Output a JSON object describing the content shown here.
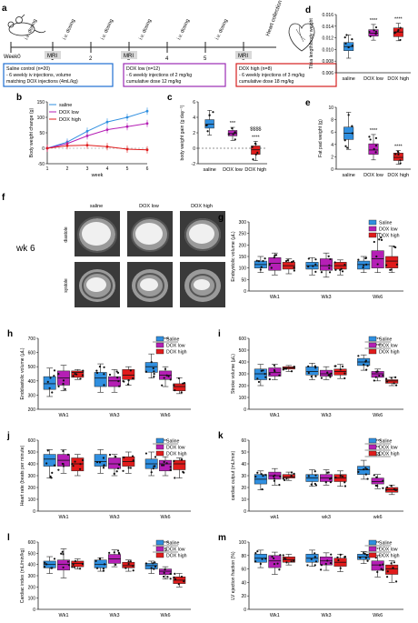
{
  "colors": {
    "saline": "#2f8fe0",
    "dox_low": "#b51fb5",
    "dox_high": "#e01b1b",
    "blue_box": "#1f6fd1",
    "purple_box": "#9b2bb5",
    "red_box": "#d62020"
  },
  "panel_a": {
    "letter": "a",
    "week0": "Week0",
    "weeks": [
      "1",
      "2",
      "3",
      "4",
      "5",
      "6"
    ],
    "dosing": "i.v. dosing",
    "mri": "MRI",
    "heart_collection": "Heart collection",
    "boxes": [
      {
        "key": "saline",
        "lines": [
          "Saline control (n=20)",
          "- 6 weekly iv injections, volume",
          "matching DOX injections (4mL/kg)"
        ]
      },
      {
        "key": "low",
        "lines": [
          "DOX low (n=12)",
          "- 6 weekly injections of 2 mg/kg",
          "cumulative dose 12 mg/kg"
        ]
      },
      {
        "key": "high",
        "lines": [
          "DOX high (n=8)",
          "- 6 weekly injections of 3 mg/kg",
          "cumulative dose 18 mg/kg"
        ]
      }
    ]
  },
  "panel_f": {
    "letter": "f",
    "cols": [
      "saline",
      "DOX low",
      "DOX high"
    ],
    "rows": [
      "diastole",
      "systole"
    ],
    "side_label": "wk 6"
  },
  "chart_data": [
    {
      "id": "b",
      "type": "line",
      "xlabel": "week",
      "ylabel": "Body weight change (g)",
      "x": [
        1,
        2,
        3,
        4,
        5,
        6
      ],
      "ylim": [
        -50,
        150
      ],
      "yticks": [
        -50,
        0,
        50,
        100,
        150
      ],
      "legend": [
        "saline",
        "DOX low",
        "DOX high"
      ],
      "series": [
        {
          "name": "saline",
          "values": [
            0,
            20,
            55,
            85,
            100,
            120
          ]
        },
        {
          "name": "DOX low",
          "values": [
            0,
            15,
            40,
            60,
            70,
            80
          ]
        },
        {
          "name": "DOX high",
          "values": [
            0,
            8,
            10,
            5,
            -3,
            -5
          ]
        }
      ]
    },
    {
      "id": "c",
      "type": "box",
      "ylabel": "body weight gain (g day⁻¹)",
      "categories": [
        "saline",
        "DOX low",
        "DOX high"
      ],
      "ylim": [
        -2,
        6
      ],
      "yticks": [
        -2,
        0,
        2,
        4,
        6
      ],
      "boxes": [
        [
          1.7,
          2.6,
          3.1,
          3.7,
          4.9
        ],
        [
          1.0,
          1.6,
          1.9,
          2.3,
          2.7
        ],
        [
          -1.6,
          -0.8,
          -0.2,
          0.3,
          0.9
        ]
      ],
      "sig": [
        "",
        "***",
        "****"
      ],
      "extra_sig": "$$$$"
    },
    {
      "id": "d",
      "type": "box",
      "ylabel": "Tibia length/body weight",
      "categories": [
        "saline",
        "DOX low",
        "DOX high"
      ],
      "ylim": [
        0.006,
        0.016
      ],
      "yticks": [
        0.006,
        0.008,
        0.01,
        0.012,
        0.014,
        0.016
      ],
      "ytick_labels": [
        "0.006",
        "0.008",
        "0.010",
        "0.012",
        "0.014",
        "0.016"
      ],
      "boxes": [
        [
          0.0085,
          0.0098,
          0.0105,
          0.0112,
          0.0125
        ],
        [
          0.0116,
          0.0123,
          0.0128,
          0.0134,
          0.0143
        ],
        [
          0.0115,
          0.0122,
          0.013,
          0.0137,
          0.0145
        ]
      ],
      "sig": [
        "",
        "****",
        "****"
      ]
    },
    {
      "id": "e",
      "type": "box",
      "ylabel": "Fat pad weight (g)",
      "categories": [
        "saline",
        "DOX low",
        "DOX high"
      ],
      "ylim": [
        0,
        10
      ],
      "yticks": [
        0,
        2,
        4,
        6,
        8,
        10
      ],
      "boxes": [
        [
          3.2,
          4.8,
          5.8,
          6.8,
          9.2
        ],
        [
          1.5,
          2.4,
          3.1,
          4.1,
          5.6
        ],
        [
          0.8,
          1.4,
          1.9,
          2.6,
          3.0
        ]
      ],
      "sig": [
        "",
        "****",
        "****"
      ]
    },
    {
      "id": "g",
      "type": "box",
      "ylabel": "Endsystolic volume (μL)",
      "categories": [
        "Wk1",
        "Wk3",
        "Wk6"
      ],
      "ylim": [
        0,
        300
      ],
      "yticks": [
        0,
        50,
        100,
        150,
        200,
        250,
        300
      ],
      "legend": [
        "Saline",
        "DOX low",
        "DOX high"
      ],
      "boxes": [
        [
          [
            80,
            100,
            115,
            130,
            150
          ],
          [
            70,
            90,
            120,
            145,
            165
          ],
          [
            75,
            95,
            110,
            125,
            140
          ]
        ],
        [
          [
            70,
            95,
            110,
            125,
            145
          ],
          [
            60,
            90,
            110,
            140,
            165
          ],
          [
            70,
            95,
            110,
            125,
            135
          ]
        ],
        [
          [
            80,
            95,
            115,
            130,
            150
          ],
          [
            80,
            100,
            140,
            175,
            250
          ],
          [
            80,
            100,
            130,
            150,
            195
          ]
        ]
      ],
      "sig": []
    },
    {
      "id": "h",
      "type": "box",
      "ylabel": "Enddiastolic volume (μL)",
      "categories": [
        "Wk1",
        "Wk3",
        "Wk6"
      ],
      "ylim": [
        200,
        700
      ],
      "yticks": [
        200,
        300,
        400,
        500,
        600,
        700
      ],
      "legend": [
        "Saline",
        "DOX low",
        "DOX high"
      ],
      "boxes": [
        [
          [
            290,
            340,
            380,
            430,
            490
          ],
          [
            330,
            370,
            420,
            470,
            510
          ],
          [
            410,
            425,
            460,
            470,
            480
          ]
        ],
        [
          [
            320,
            360,
            420,
            460,
            520
          ],
          [
            320,
            360,
            400,
            430,
            480
          ],
          [
            370,
            410,
            440,
            480,
            500
          ]
        ],
        [
          [
            420,
            460,
            500,
            530,
            590
          ],
          [
            360,
            410,
            440,
            470,
            500
          ],
          [
            310,
            330,
            360,
            380,
            420
          ]
        ]
      ],
      "sig": [
        "****"
      ]
    },
    {
      "id": "i",
      "type": "box",
      "ylabel": "Stroke volume (μL)",
      "categories": [
        "Wk1",
        "Wk3",
        "Wk6"
      ],
      "ylim": [
        0,
        600
      ],
      "yticks": [
        0,
        100,
        200,
        300,
        400,
        500,
        600
      ],
      "legend": [
        "Saline",
        "DOX low",
        "DOX high"
      ],
      "boxes": [
        [
          [
            200,
            250,
            300,
            340,
            380
          ],
          [
            250,
            280,
            310,
            350,
            380
          ],
          [
            320,
            340,
            350,
            360,
            370
          ]
        ],
        [
          [
            250,
            290,
            320,
            360,
            390
          ],
          [
            250,
            280,
            300,
            330,
            360
          ],
          [
            260,
            290,
            320,
            340,
            380
          ]
        ],
        [
          [
            330,
            370,
            400,
            430,
            460
          ],
          [
            240,
            270,
            300,
            320,
            340
          ],
          [
            200,
            220,
            240,
            250,
            270
          ]
        ]
      ],
      "sig": [
        "***",
        "****"
      ]
    },
    {
      "id": "j",
      "type": "box",
      "ylabel": "Heart rate (beats per minute)",
      "categories": [
        "Wk1",
        "Wk3",
        "Wk6"
      ],
      "ylim": [
        0,
        600
      ],
      "yticks": [
        0,
        100,
        200,
        300,
        400,
        500,
        600
      ],
      "legend": [
        "Saline",
        "DOX low",
        "DOX high"
      ],
      "boxes": [
        [
          [
            280,
            380,
            440,
            480,
            520
          ],
          [
            320,
            380,
            430,
            480,
            520
          ],
          [
            300,
            340,
            400,
            450,
            480
          ]
        ],
        [
          [
            320,
            380,
            420,
            480,
            520
          ],
          [
            300,
            360,
            400,
            450,
            480
          ],
          [
            320,
            380,
            420,
            460,
            500
          ]
        ],
        [
          [
            300,
            360,
            400,
            440,
            500
          ],
          [
            300,
            340,
            400,
            430,
            460
          ],
          [
            280,
            350,
            400,
            430,
            450
          ]
        ]
      ],
      "sig": [
        "**"
      ]
    },
    {
      "id": "k",
      "type": "box",
      "ylabel": "cardiac output (mL/min)",
      "categories": [
        "wk1",
        "wk3",
        "wk6"
      ],
      "ylim": [
        0,
        60
      ],
      "yticks": [
        0,
        10,
        20,
        30,
        40,
        50,
        60
      ],
      "legend": [
        "Saline",
        "DOX low",
        "DOX high"
      ],
      "boxes": [
        [
          [
            18,
            23,
            27,
            31,
            34
          ],
          [
            22,
            27,
            30,
            33,
            36
          ],
          [
            26,
            28,
            29,
            31,
            33
          ]
        ],
        [
          [
            21,
            25,
            28,
            31,
            35
          ],
          [
            22,
            25,
            28,
            31,
            35
          ],
          [
            21,
            25,
            28,
            31,
            34
          ]
        ],
        [
          [
            27,
            31,
            35,
            38,
            43
          ],
          [
            19,
            23,
            25,
            28,
            31
          ],
          [
            14,
            16,
            18,
            20,
            22
          ]
        ]
      ],
      "sig": [
        "****",
        "**",
        "$$"
      ]
    },
    {
      "id": "l",
      "type": "box",
      "ylabel": "Cardiac index (mL/min/kg)",
      "categories": [
        "Wk1",
        "Wk3",
        "Wk6"
      ],
      "ylim": [
        0,
        600
      ],
      "yticks": [
        0,
        100,
        200,
        300,
        400,
        500,
        600
      ],
      "legend": [
        "Saline",
        "DOX low",
        "DOX high"
      ],
      "boxes": [
        [
          [
            320,
            370,
            400,
            430,
            470
          ],
          [
            280,
            350,
            400,
            440,
            540
          ],
          [
            360,
            380,
            410,
            430,
            450
          ]
        ],
        [
          [
            340,
            370,
            400,
            440,
            460
          ],
          [
            380,
            410,
            450,
            490,
            530
          ],
          [
            340,
            370,
            390,
            420,
            440
          ]
        ],
        [
          [
            320,
            360,
            390,
            410,
            430
          ],
          [
            270,
            310,
            340,
            360,
            380
          ],
          [
            200,
            230,
            260,
            290,
            320
          ]
        ]
      ],
      "sig": [
        "****",
        "$"
      ]
    },
    {
      "id": "m",
      "type": "box",
      "ylabel": "LV ejection fraction (%)",
      "categories": [
        "Wk1",
        "Wk3",
        "Wk6"
      ],
      "ylim": [
        0,
        100
      ],
      "yticks": [
        0,
        20,
        40,
        60,
        80,
        100
      ],
      "legend": [
        "Saline",
        "DOX low",
        "DOX high"
      ],
      "boxes": [
        [
          [
            62,
            70,
            76,
            82,
            88
          ],
          [
            52,
            62,
            72,
            80,
            85
          ],
          [
            66,
            70,
            74,
            78,
            82
          ]
        ],
        [
          [
            64,
            70,
            76,
            82,
            88
          ],
          [
            58,
            66,
            72,
            78,
            84
          ],
          [
            56,
            64,
            70,
            76,
            82
          ]
        ],
        [
          [
            68,
            74,
            78,
            82,
            86
          ],
          [
            48,
            58,
            66,
            72,
            80
          ],
          [
            40,
            52,
            60,
            66,
            72
          ]
        ]
      ],
      "sig": [
        "**",
        "***"
      ]
    }
  ]
}
